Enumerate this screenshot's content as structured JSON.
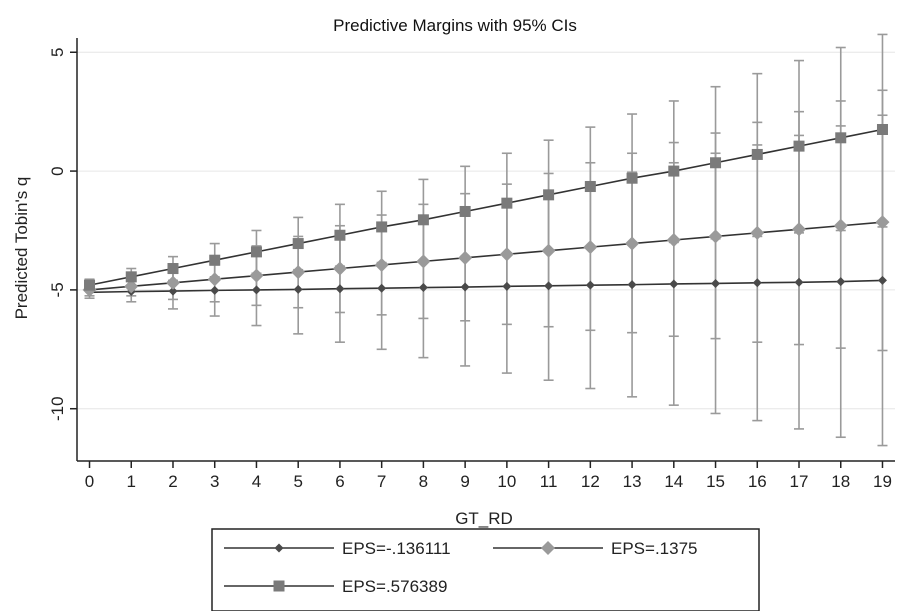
{
  "chart_data": {
    "type": "line",
    "title": "Predictive Margins with 95% CIs",
    "xlabel": "GT_RD",
    "ylabel": "Predicted Tobin's q",
    "x": [
      0,
      1,
      2,
      3,
      4,
      5,
      6,
      7,
      8,
      9,
      10,
      11,
      12,
      13,
      14,
      15,
      16,
      17,
      18,
      19
    ],
    "xlim": [
      -0.3,
      19.3
    ],
    "ylim": [
      -12.2,
      5.6
    ],
    "yticks": [
      5,
      0,
      -5,
      -10
    ],
    "grid": true,
    "legend_position": "bottom",
    "series": [
      {
        "name": "EPS=-.136111",
        "marker": "diamond-small",
        "color": "#4a4a4a",
        "values": [
          -5.1,
          -5.07,
          -5.05,
          -5.02,
          -5.0,
          -4.98,
          -4.95,
          -4.93,
          -4.9,
          -4.88,
          -4.85,
          -4.83,
          -4.8,
          -4.78,
          -4.75,
          -4.73,
          -4.7,
          -4.68,
          -4.65,
          -4.6
        ],
        "ci_low": [
          -5.35,
          -5.5,
          -5.8,
          -6.1,
          -6.5,
          -6.85,
          -7.2,
          -7.5,
          -7.85,
          -8.2,
          -8.5,
          -8.8,
          -9.15,
          -9.5,
          -9.85,
          -10.2,
          -10.5,
          -10.85,
          -11.2,
          -11.55
        ],
        "ci_high": [
          -4.85,
          -4.65,
          -4.3,
          -3.95,
          -3.5,
          -3.1,
          -2.7,
          -2.35,
          -1.95,
          -1.55,
          -1.2,
          -0.85,
          -0.45,
          -0.05,
          0.35,
          0.75,
          1.1,
          1.5,
          1.9,
          2.35
        ]
      },
      {
        "name": "EPS=.1375",
        "marker": "diamond",
        "color": "#9a9a9a",
        "values": [
          -5.0,
          -4.85,
          -4.7,
          -4.55,
          -4.4,
          -4.25,
          -4.1,
          -3.95,
          -3.8,
          -3.65,
          -3.5,
          -3.35,
          -3.2,
          -3.05,
          -2.9,
          -2.75,
          -2.6,
          -2.45,
          -2.3,
          -2.15
        ],
        "ci_low": [
          -5.25,
          -5.25,
          -5.4,
          -5.5,
          -5.65,
          -5.75,
          -5.95,
          -6.05,
          -6.2,
          -6.3,
          -6.45,
          -6.55,
          -6.7,
          -6.8,
          -6.95,
          -7.05,
          -7.2,
          -7.3,
          -7.45,
          -7.55
        ],
        "ci_high": [
          -4.75,
          -4.45,
          -4.0,
          -3.6,
          -3.15,
          -2.75,
          -2.3,
          -1.85,
          -1.4,
          -0.95,
          -0.55,
          -0.1,
          0.35,
          0.75,
          1.2,
          1.6,
          2.05,
          2.5,
          2.95,
          3.4
        ]
      },
      {
        "name": "EPS=.576389",
        "marker": "square",
        "color": "#7a7a7a",
        "values": [
          -4.8,
          -4.45,
          -4.1,
          -3.75,
          -3.4,
          -3.05,
          -2.7,
          -2.35,
          -2.05,
          -1.7,
          -1.35,
          -1.0,
          -0.65,
          -0.3,
          0.0,
          0.35,
          0.7,
          1.05,
          1.4,
          1.75
        ],
        "ci_low": [
          -5.05,
          -4.8,
          -4.6,
          -4.45,
          -4.3,
          -4.15,
          -4.0,
          -3.85,
          -3.75,
          -3.6,
          -3.5,
          -3.35,
          -3.25,
          -3.1,
          -3.0,
          -2.85,
          -2.75,
          -2.6,
          -2.5,
          -2.35
        ],
        "ci_high": [
          -4.55,
          -4.1,
          -3.6,
          -3.05,
          -2.5,
          -1.95,
          -1.4,
          -0.85,
          -0.35,
          0.2,
          0.75,
          1.3,
          1.85,
          2.4,
          2.95,
          3.55,
          4.1,
          4.65,
          5.2,
          5.75
        ]
      }
    ]
  }
}
